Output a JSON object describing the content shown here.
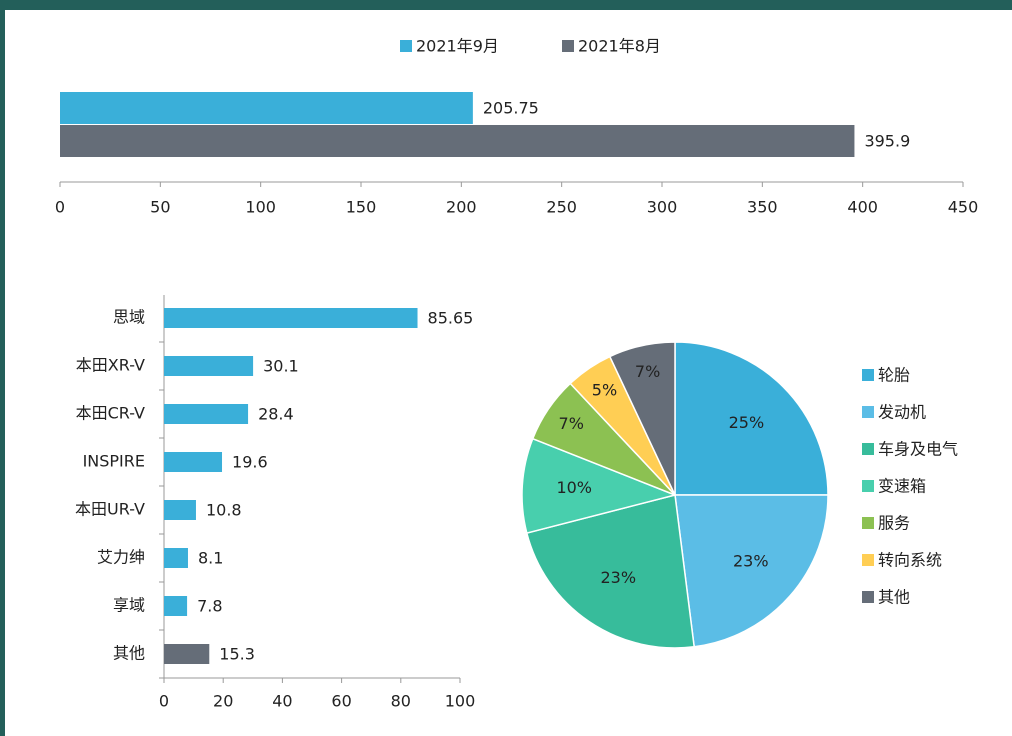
{
  "chart_data": [
    {
      "type": "hbar",
      "categories": [
        null
      ],
      "series": [
        {
          "name": "2021年9月",
          "color": "#3aafd9",
          "values": [
            205.75
          ]
        },
        {
          "name": "2021年8月",
          "color": "#656d78",
          "values": [
            395.9
          ]
        }
      ],
      "xlim": [
        0,
        450
      ],
      "xticks": [
        0,
        50,
        100,
        150,
        200,
        250,
        300,
        350,
        400,
        450
      ],
      "legend": "top"
    },
    {
      "type": "hbar",
      "categories": [
        "思域",
        "本田XR-V",
        "本田CR-V",
        "INSPIRE",
        "本田UR-V",
        "艾力绅",
        "享域",
        "其他"
      ],
      "values": [
        85.65,
        30.1,
        28.4,
        19.6,
        10.8,
        8.1,
        7.8,
        15.3
      ],
      "colors": [
        "#3aafd9",
        "#3aafd9",
        "#3aafd9",
        "#3aafd9",
        "#3aafd9",
        "#3aafd9",
        "#3aafd9",
        "#656d78"
      ],
      "xlim": [
        0,
        100
      ],
      "xticks": [
        0,
        20,
        40,
        60,
        80,
        100
      ]
    },
    {
      "type": "pie",
      "categories": [
        "轮胎",
        "发动机",
        "车身及电气",
        "变速箱",
        "服务",
        "转向系统",
        "其他"
      ],
      "values": [
        25,
        23,
        23,
        10,
        7,
        5,
        7
      ],
      "value_labels": [
        "25%",
        "23%",
        "23%",
        "10%",
        "7%",
        "5%",
        "7%"
      ],
      "colors": [
        "#3aafd9",
        "#5bbde6",
        "#37bc9b",
        "#48cfad",
        "#8cc152",
        "#ffce54",
        "#656d78"
      ],
      "legend": "right"
    }
  ]
}
